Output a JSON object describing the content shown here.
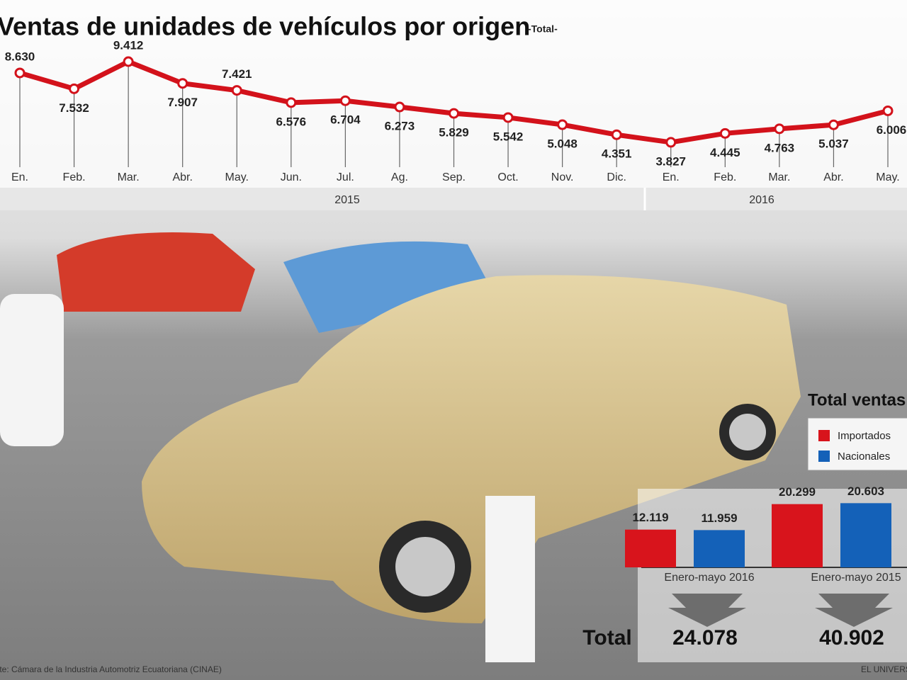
{
  "chart_data": [
    {
      "type": "line",
      "title": "Ventas de unidades de vehículos por origen",
      "subtitle": "-Total-",
      "categories": [
        "En.",
        "Feb.",
        "Mar.",
        "Abr.",
        "May.",
        "Jun.",
        "Jul.",
        "Ag.",
        "Sep.",
        "Oct.",
        "Nov.",
        "Dic.",
        "En.",
        "Feb.",
        "Mar.",
        "Abr.",
        "May."
      ],
      "groups": [
        "2015",
        "2016"
      ],
      "values": [
        8630,
        7532,
        9412,
        7907,
        7421,
        6576,
        6704,
        6273,
        5829,
        5542,
        5048,
        4351,
        3827,
        4445,
        4763,
        5037,
        6006
      ],
      "value_labels": [
        "8.630",
        "7.532",
        "9.412",
        "7.907",
        "7.421",
        "6.576",
        "6.704",
        "6.273",
        "5.829",
        "5.542",
        "5.048",
        "4.351",
        "3.827",
        "4.445",
        "4.763",
        "5.037",
        "6.006"
      ],
      "color": "#d3121b"
    },
    {
      "type": "bar",
      "title": "Total ventas",
      "categories": [
        "Enero-mayo 2016",
        "Enero-mayo 2015"
      ],
      "series": [
        {
          "name": "Importados",
          "color": "#d8141c",
          "values": [
            12119,
            20299
          ],
          "value_labels": [
            "12.119",
            "20.299"
          ]
        },
        {
          "name": "Nacionales",
          "color": "#1461b8",
          "values": [
            11959,
            20603
          ],
          "value_labels": [
            "11.959",
            "20.603"
          ]
        }
      ],
      "totals": {
        "label": "Total",
        "values": [
          24078,
          40902
        ],
        "value_labels": [
          "24.078",
          "40.902"
        ]
      }
    }
  ],
  "source": "Fuente: Cámara de la Industria Automotriz Ecuatoriana (CINAE)",
  "brand": "EL UNIVERSO"
}
